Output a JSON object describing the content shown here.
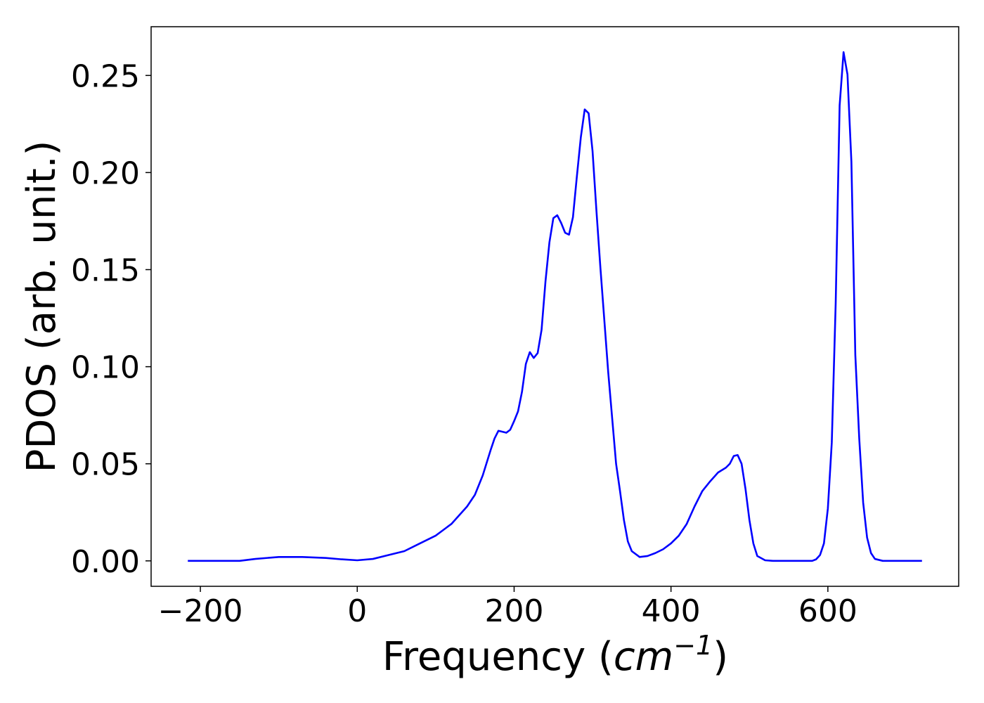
{
  "chart_data": {
    "type": "line",
    "x_label": {
      "prefix": "Frequency (",
      "unit": "cm",
      "exponent": "−1",
      "suffix": ")"
    },
    "y_label": "PDOS (arb. unit.)",
    "x": [
      -216,
      -150,
      -130,
      -100,
      -70,
      -40,
      -20,
      0,
      20,
      40,
      60,
      80,
      100,
      120,
      140,
      150,
      160,
      170,
      175,
      180,
      190,
      195,
      200,
      205,
      210,
      215,
      220,
      225,
      230,
      235,
      240,
      245,
      250,
      255,
      260,
      265,
      270,
      275,
      280,
      285,
      290,
      295,
      300,
      305,
      310,
      320,
      330,
      335,
      340,
      345,
      350,
      360,
      370,
      380,
      390,
      400,
      410,
      420,
      430,
      440,
      450,
      460,
      470,
      475,
      480,
      485,
      490,
      495,
      500,
      505,
      510,
      520,
      530,
      580,
      585,
      590,
      595,
      600,
      605,
      610,
      615,
      620,
      625,
      630,
      635,
      640,
      645,
      650,
      655,
      660,
      670,
      720
    ],
    "series": [
      {
        "color": "#0000ff",
        "values": [
          0,
          0,
          0.001,
          0.002,
          0.002,
          0.0015,
          0.0008,
          0.0003,
          0.001,
          0.003,
          0.005,
          0.009,
          0.013,
          0.019,
          0.028,
          0.034,
          0.044,
          0.057,
          0.063,
          0.067,
          0.066,
          0.0675,
          0.072,
          0.077,
          0.087,
          0.1015,
          0.1075,
          0.1045,
          0.107,
          0.119,
          0.144,
          0.164,
          0.1765,
          0.178,
          0.174,
          0.169,
          0.168,
          0.177,
          0.198,
          0.218,
          0.2325,
          0.2305,
          0.211,
          0.18,
          0.151,
          0.097,
          0.05,
          0.036,
          0.021,
          0.01,
          0.005,
          0.002,
          0.0025,
          0.004,
          0.006,
          0.009,
          0.013,
          0.019,
          0.028,
          0.036,
          0.041,
          0.0455,
          0.048,
          0.05,
          0.054,
          0.0545,
          0.05,
          0.037,
          0.021,
          0.009,
          0.0025,
          0.0003,
          0,
          0,
          0.0008,
          0.003,
          0.009,
          0.027,
          0.061,
          0.133,
          0.2345,
          0.262,
          0.2505,
          0.2055,
          0.106,
          0.063,
          0.03,
          0.012,
          0.004,
          0.001,
          0,
          0
        ]
      }
    ],
    "xlim": [
      -262.8,
      766.8
    ],
    "xticks": [
      {
        "value": -200,
        "label": "−200"
      },
      0,
      200,
      400,
      600
    ],
    "ylim": [
      -0.0131,
      0.2751
    ],
    "yticks": [
      {
        "value": 0,
        "label": "0.00"
      },
      0.05,
      {
        "value": 0.1,
        "label": "0.10"
      },
      0.15,
      {
        "value": 0.2,
        "label": "0.20"
      },
      0.25
    ]
  }
}
